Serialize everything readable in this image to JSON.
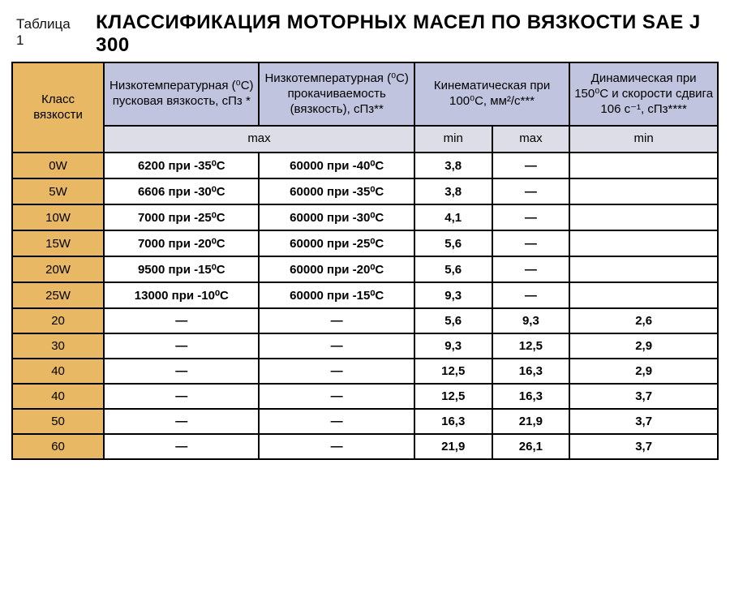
{
  "caption": "Таблица 1",
  "title": "КЛАССИФИКАЦИЯ МОТОРНЫХ МАСЕЛ ПО ВЯЗКОСТИ SAE J 300",
  "colors": {
    "header_main_bg": "#c1c4df",
    "header_sub_bg": "#dcdde6",
    "class_col_bg": "#e9b864",
    "border": "#000000",
    "page_bg": "#ffffff"
  },
  "fontsize": {
    "title": 24,
    "caption": 17,
    "header": 15,
    "cell": 15
  },
  "columns": {
    "class": "Класс вязкости",
    "starting": "Низкотемпературная (⁰С) пусковая вязкость, сПз *",
    "pump": "Низкотемпературная (⁰С) прокачиваемость (вязкость), сПз**",
    "kinematic": "Кинематическая при 100⁰С, мм²/с***",
    "dynamic": "Динамическая при 150⁰С и скорости сдвига 106 с⁻¹, сПз****"
  },
  "subheaders": {
    "max_wide": "max",
    "min": "min",
    "max": "max",
    "min2": "min"
  },
  "rows": [
    {
      "class": "0W",
      "starting": "6200 при -35⁰С",
      "pump": "60000 при -40⁰С",
      "kmin": "3,8",
      "kmax": "—",
      "dyn": "",
      "boldCols": true
    },
    {
      "class": "5W",
      "starting": "6606 при -30⁰С",
      "pump": "60000 при -35⁰С",
      "kmin": "3,8",
      "kmax": "—",
      "dyn": "",
      "boldCols": true
    },
    {
      "class": "10W",
      "starting": "7000 при -25⁰С",
      "pump": "60000 при -30⁰С",
      "kmin": "4,1",
      "kmax": "—",
      "dyn": "",
      "boldCols": true
    },
    {
      "class": "15W",
      "starting": "7000 при -20⁰С",
      "pump": "60000 при -25⁰С",
      "kmin": "5,6",
      "kmax": "—",
      "dyn": "",
      "boldCols": true
    },
    {
      "class": "20W",
      "starting": "9500 при -15⁰С",
      "pump": "60000 при -20⁰С",
      "kmin": "5,6",
      "kmax": "—",
      "dyn": "",
      "boldCols": true
    },
    {
      "class": "25W",
      "starting": "13000 при -10⁰С",
      "pump": "60000 при -15⁰С",
      "kmin": "9,3",
      "kmax": "—",
      "dyn": "",
      "boldCols": true
    },
    {
      "class": "20",
      "starting": "—",
      "pump": "—",
      "kmin": "5,6",
      "kmax": "9,3",
      "dyn": "2,6",
      "boldCols": false
    },
    {
      "class": "30",
      "starting": "—",
      "pump": "—",
      "kmin": "9,3",
      "kmax": "12,5",
      "dyn": "2,9",
      "boldCols": false
    },
    {
      "class": "40",
      "starting": "—",
      "pump": "—",
      "kmin": "12,5",
      "kmax": "16,3",
      "dyn": "2,9",
      "boldCols": false
    },
    {
      "class": "40",
      "starting": "—",
      "pump": "—",
      "kmin": "12,5",
      "kmax": "16,3",
      "dyn": "3,7",
      "boldCols": false
    },
    {
      "class": "50",
      "starting": "—",
      "pump": "—",
      "kmin": "16,3",
      "kmax": "21,9",
      "dyn": "3,7",
      "boldCols": false
    },
    {
      "class": "60",
      "starting": "—",
      "pump": "—",
      "kmin": "21,9",
      "kmax": "26,1",
      "dyn": "3,7",
      "boldCols": false
    }
  ]
}
